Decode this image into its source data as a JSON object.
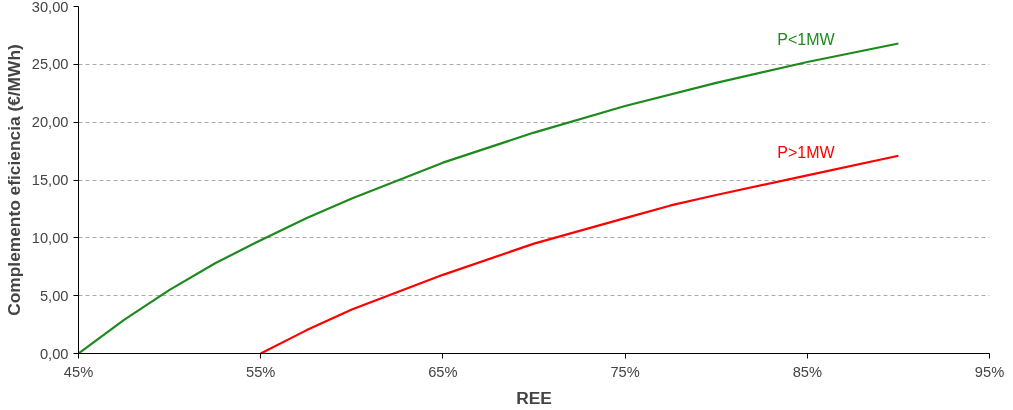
{
  "chart_data": {
    "type": "line",
    "xlabel": "REE",
    "ylabel": "Complemento eficiencia (€/MWh)",
    "xlim": [
      45,
      95
    ],
    "ylim": [
      0,
      30
    ],
    "xticks": [
      {
        "value": 45,
        "label": "45%"
      },
      {
        "value": 55,
        "label": "55%"
      },
      {
        "value": 65,
        "label": "65%"
      },
      {
        "value": 75,
        "label": "75%"
      },
      {
        "value": 85,
        "label": "85%"
      },
      {
        "value": 95,
        "label": "95%"
      }
    ],
    "yticks": [
      {
        "value": 0,
        "label": "0,00"
      },
      {
        "value": 5,
        "label": "5,00"
      },
      {
        "value": 10,
        "label": "10,00"
      },
      {
        "value": 15,
        "label": "15,00"
      },
      {
        "value": 20,
        "label": "20,00"
      },
      {
        "value": 25,
        "label": "25,00"
      },
      {
        "value": 30,
        "label": "30,00"
      }
    ],
    "grid": "y",
    "marker": "none",
    "line_style": "solid",
    "series": [
      {
        "name": "P<1MW",
        "color": "#1e8a1e",
        "x": [
          45,
          47.5,
          50,
          52.5,
          55,
          57.5,
          60,
          65,
          70,
          75,
          80,
          85,
          90
        ],
        "values": [
          0,
          2.9,
          5.5,
          7.8,
          9.8,
          11.7,
          13.4,
          16.5,
          19.1,
          21.4,
          23.4,
          25.2,
          26.8
        ]
      },
      {
        "name": "P>1MW",
        "color": "#ff0000",
        "x": [
          55,
          57.5,
          60,
          65,
          70,
          75,
          77.5,
          80,
          85,
          90
        ],
        "values": [
          0,
          2.0,
          3.8,
          6.8,
          9.5,
          11.7,
          12.8,
          13.7,
          15.4,
          17.1
        ]
      }
    ]
  }
}
